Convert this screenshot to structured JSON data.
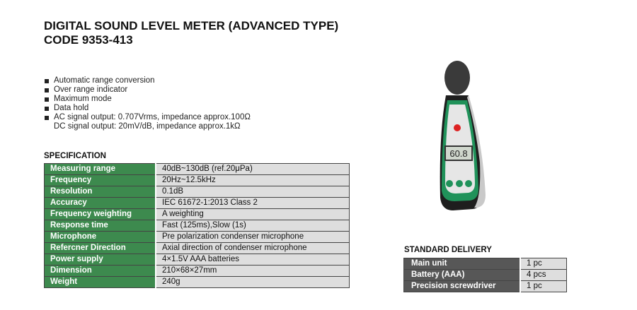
{
  "header": {
    "title_line1": "DIGITAL SOUND LEVEL METER (ADVANCED TYPE)",
    "title_line2": "CODE 9353-413"
  },
  "features": [
    "Automatic range conversion",
    "Over range indicator",
    "Maximum mode",
    "Data hold",
    "AC signal output: 0.707Vrms, impedance approx.100Ω",
    "DC signal output: 20mV/dB, impedance approx.1kΩ"
  ],
  "specification": {
    "heading": "SPECIFICATION",
    "rows": [
      {
        "label": "Measuring range",
        "value": "40dB~130dB (ref.20μPa)"
      },
      {
        "label": "Frequency",
        "value": "20Hz~12.5kHz"
      },
      {
        "label": "Resolution",
        "value": "0.1dB"
      },
      {
        "label": "Accuracy",
        "value": "IEC 61672-1:2013 Class 2"
      },
      {
        "label": "Frequency weighting",
        "value": "A weighting"
      },
      {
        "label": "Response time",
        "value": "Fast (125ms),Slow (1s)"
      },
      {
        "label": "Microphone",
        "value": "Pre polarization condenser microphone"
      },
      {
        "label": "Refercner Direction",
        "value": "Axial direction of condenser microphone"
      },
      {
        "label": "Power supply",
        "value": "4×1.5V AAA batteries"
      },
      {
        "label": "Dimension",
        "value": "210×68×27mm"
      },
      {
        "label": "Weight",
        "value": "240g"
      }
    ]
  },
  "delivery": {
    "heading": "STANDARD DELIVERY",
    "rows": [
      {
        "label": "Main unit",
        "value": "1 pc"
      },
      {
        "label": "Battery (AAA)",
        "value": "4 pcs"
      },
      {
        "label": "Precision screwdriver",
        "value": "1 pc"
      }
    ]
  },
  "device": {
    "display_reading": "60.8"
  },
  "colors": {
    "spec_label_bg": "#3d8a4e",
    "delivery_label_bg": "#575757",
    "value_bg": "#dedede"
  }
}
